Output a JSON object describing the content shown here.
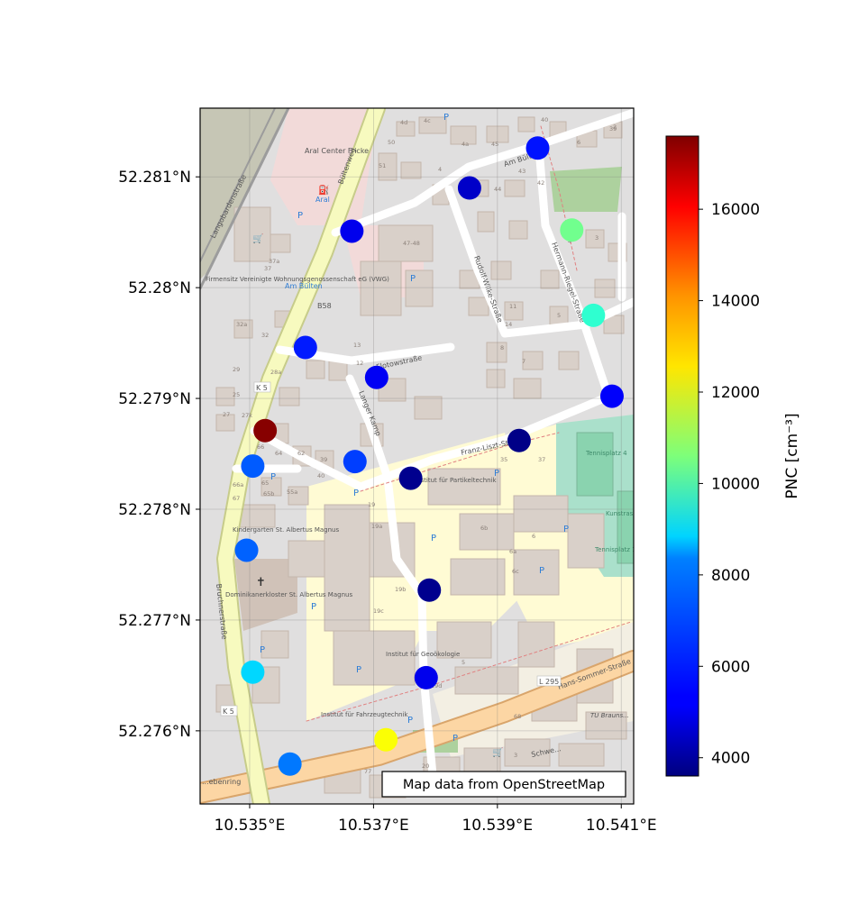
{
  "map": {
    "attribution": "Map data from OpenStreetMap",
    "colors": {
      "building": "#d9d0c9",
      "building_stroke": "#c4b6ab",
      "landuse_residential": "#e0dfdf",
      "landuse_education": "#fffbd4",
      "landuse_commercial": "#f2dad9",
      "green_area": "#add19e",
      "pitch": "#aae0cb",
      "railway_area": "#c6c6b5",
      "road_primary": "#fcd6a4",
      "road_secondary": "#f7fabf",
      "road_residential": "#ffffff"
    },
    "labels": {
      "streets": [
        "Langobardenstraße",
        "Bültenweg",
        "Am Bülten",
        "Rudolf-Wilke-Straße",
        "Hermann-Riegel-Straße",
        "Flotowstraße",
        "Langer Kamp",
        "Franz-Liszt-Straße",
        "Bruchnerstraße",
        "Hans-Sommer-Straße",
        "Schwe...",
        "...ebenring",
        "K 5",
        "L 295",
        "B58"
      ],
      "places": [
        "Aral Center Fricke",
        "Aral",
        "Am Bülten",
        "Firmensitz Vereinigte Wohnungsgenossenschaft eG (VWG)",
        "Kindergarten St. Albertus Magnus",
        "Dominikanerkloster St. Albertus Magnus",
        "Institut für Partikeltechnik",
        "Institut für Geoökologie",
        "Institut für Fahrzeugtechnik",
        "Tennisplatz 4",
        "Kunstrasen Tennisplatz 2",
        "Tennisplatz 1",
        "TU Brauns..."
      ],
      "house_numbers": [
        "4d",
        "4c",
        "50",
        "4a",
        "4",
        "51",
        "45",
        "43",
        "44",
        "42",
        "40",
        "39",
        "6",
        "47-48",
        "37a",
        "37",
        "32a",
        "32",
        "29",
        "28a",
        "25",
        "27",
        "27k",
        "66",
        "64",
        "62",
        "40",
        "39",
        "35",
        "37",
        "65",
        "65b",
        "66a",
        "67",
        "55a",
        "19",
        "19a",
        "6b",
        "6a",
        "6c",
        "6",
        "19b",
        "19c",
        "19d",
        "5",
        "68",
        "77",
        "20",
        "3",
        "13",
        "12",
        "11",
        "14",
        "8",
        "7",
        "5",
        "4",
        "3",
        "2"
      ]
    }
  },
  "chart_data": {
    "type": "scatter",
    "title": "",
    "xlabel": "",
    "ylabel": "",
    "xlim": [
      10.5342,
      10.5412
    ],
    "ylim": [
      52.27534,
      52.28162
    ],
    "x_ticks": [
      {
        "value": 10.535,
        "label": "10.535°E"
      },
      {
        "value": 10.537,
        "label": "10.537°E"
      },
      {
        "value": 10.539,
        "label": "10.539°E"
      },
      {
        "value": 10.541,
        "label": "10.541°E"
      }
    ],
    "y_ticks": [
      {
        "value": 52.281,
        "label": "52.281°N"
      },
      {
        "value": 52.28,
        "label": "52.28°N"
      },
      {
        "value": 52.279,
        "label": "52.279°N"
      },
      {
        "value": 52.278,
        "label": "52.278°N"
      },
      {
        "value": 52.277,
        "label": "52.277°N"
      },
      {
        "value": 52.276,
        "label": "52.276°N"
      }
    ],
    "grid": true,
    "points": [
      {
        "lon": 10.53965,
        "lat": 52.28126,
        "pnc": 5600
      },
      {
        "lon": 10.53855,
        "lat": 52.2809,
        "pnc": 4600
      },
      {
        "lon": 10.53665,
        "lat": 52.28051,
        "pnc": 5100
      },
      {
        "lon": 10.5402,
        "lat": 52.28052,
        "pnc": 10400
      },
      {
        "lon": 10.54055,
        "lat": 52.27975,
        "pnc": 9500
      },
      {
        "lon": 10.5359,
        "lat": 52.27946,
        "pnc": 5700
      },
      {
        "lon": 10.53705,
        "lat": 52.27919,
        "pnc": 5200
      },
      {
        "lon": 10.54085,
        "lat": 52.27902,
        "pnc": 5300
      },
      {
        "lon": 10.53525,
        "lat": 52.27871,
        "pnc": 17500
      },
      {
        "lon": 10.53935,
        "lat": 52.27862,
        "pnc": 3700
      },
      {
        "lon": 10.5367,
        "lat": 52.27843,
        "pnc": 6200
      },
      {
        "lon": 10.53505,
        "lat": 52.27839,
        "pnc": 6600
      },
      {
        "lon": 10.5376,
        "lat": 52.27828,
        "pnc": 3800
      },
      {
        "lon": 10.53495,
        "lat": 52.27763,
        "pnc": 6700
      },
      {
        "lon": 10.5379,
        "lat": 52.27727,
        "pnc": 3800
      },
      {
        "lon": 10.53505,
        "lat": 52.27653,
        "pnc": 8300
      },
      {
        "lon": 10.53785,
        "lat": 52.27648,
        "pnc": 5100
      },
      {
        "lon": 10.5372,
        "lat": 52.27592,
        "pnc": 12300
      },
      {
        "lon": 10.53565,
        "lat": 52.2757,
        "pnc": 7000
      }
    ],
    "colorbar": {
      "label": "PNC [cm⁻³]",
      "min": 3600,
      "max": 17600,
      "colormap": "jet",
      "ticks": [
        {
          "value": 4000,
          "label": "4000"
        },
        {
          "value": 6000,
          "label": "6000"
        },
        {
          "value": 8000,
          "label": "8000"
        },
        {
          "value": 10000,
          "label": "10000"
        },
        {
          "value": 12000,
          "label": "12000"
        },
        {
          "value": 14000,
          "label": "14000"
        },
        {
          "value": 16000,
          "label": "16000"
        }
      ]
    }
  }
}
